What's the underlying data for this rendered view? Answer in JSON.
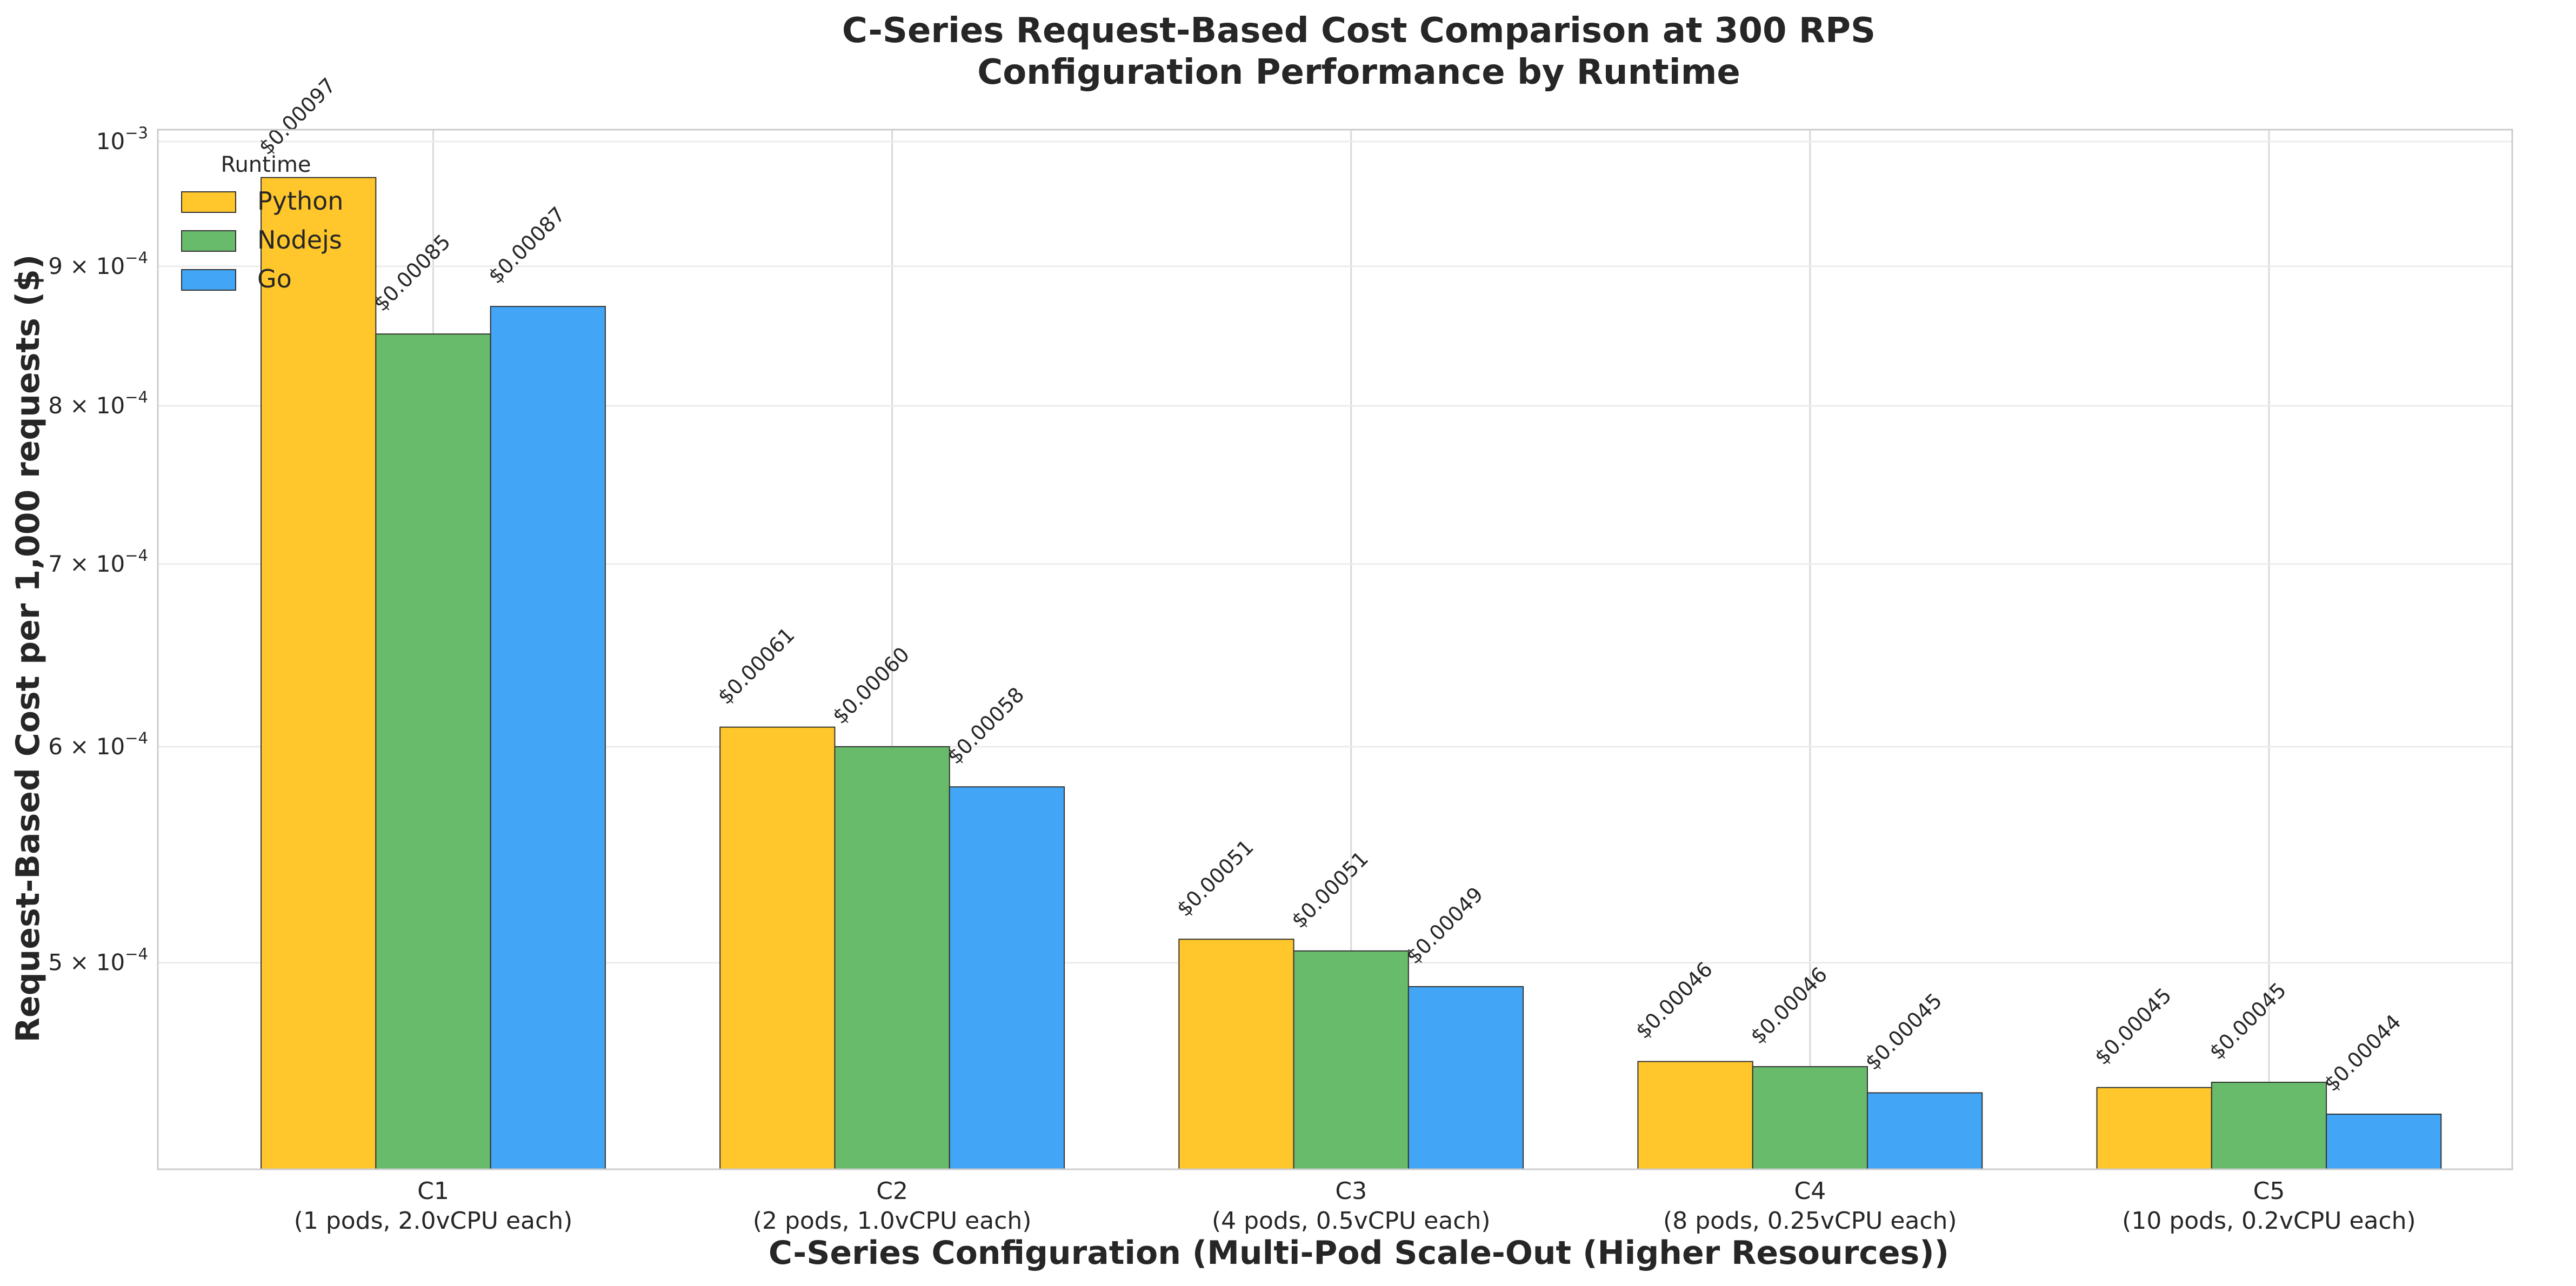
{
  "chart_data": {
    "type": "bar",
    "title": "C-Series Request-Based Cost Comparison at 300 RPS",
    "subtitle": "Configuration Performance by Runtime",
    "xlabel": "C-Series Configuration (Multi-Pod Scale-Out (Higher Resources))",
    "ylabel": "Request-Based Cost per 1,000 requests ($)",
    "y_scale": "log",
    "ylim": [
      0.00042,
      0.00101
    ],
    "y_ticks": [
      {
        "value": 0.0005,
        "mantissa": "5",
        "exponent": "−4"
      },
      {
        "value": 0.0006,
        "mantissa": "6",
        "exponent": "−4"
      },
      {
        "value": 0.0007,
        "mantissa": "7",
        "exponent": "−4"
      },
      {
        "value": 0.0008,
        "mantissa": "8",
        "exponent": "−4"
      },
      {
        "value": 0.0009,
        "mantissa": "9",
        "exponent": "−4"
      },
      {
        "value": 0.001,
        "mantissa": "10",
        "exponent": "−3",
        "base_only": true
      }
    ],
    "categories": [
      "C1",
      "C2",
      "C3",
      "C4",
      "C5"
    ],
    "category_sublabels": [
      "(1 pods, 2.0vCPU each)",
      "(2 pods, 1.0vCPU each)",
      "(4 pods, 0.5vCPU each)",
      "(8 pods, 0.25vCPU each)",
      "(10 pods, 0.2vCPU each)"
    ],
    "series": [
      {
        "name": "Python",
        "color": "#FFC72C",
        "values": [
          0.00097,
          0.00061,
          0.00051,
          0.00046,
          0.00045
        ],
        "labels": [
          "$0.00097",
          "$0.00061",
          "$0.00051",
          "$0.00046",
          "$0.00045"
        ]
      },
      {
        "name": "Nodejs",
        "color": "#68BB6A",
        "values": [
          0.00085,
          0.0006,
          0.000505,
          0.000458,
          0.000452
        ],
        "labels": [
          "$0.00085",
          "$0.00060",
          "$0.00051",
          "$0.00046",
          "$0.00045"
        ]
      },
      {
        "name": "Go",
        "color": "#42A5F5",
        "values": [
          0.00087,
          0.00058,
          0.00049,
          0.000448,
          0.00044
        ],
        "labels": [
          "$0.00087",
          "$0.00058",
          "$0.00049",
          "$0.00045",
          "$0.00044"
        ]
      }
    ],
    "legend": {
      "title": "Runtime",
      "position": "top-left"
    },
    "grid": true
  }
}
